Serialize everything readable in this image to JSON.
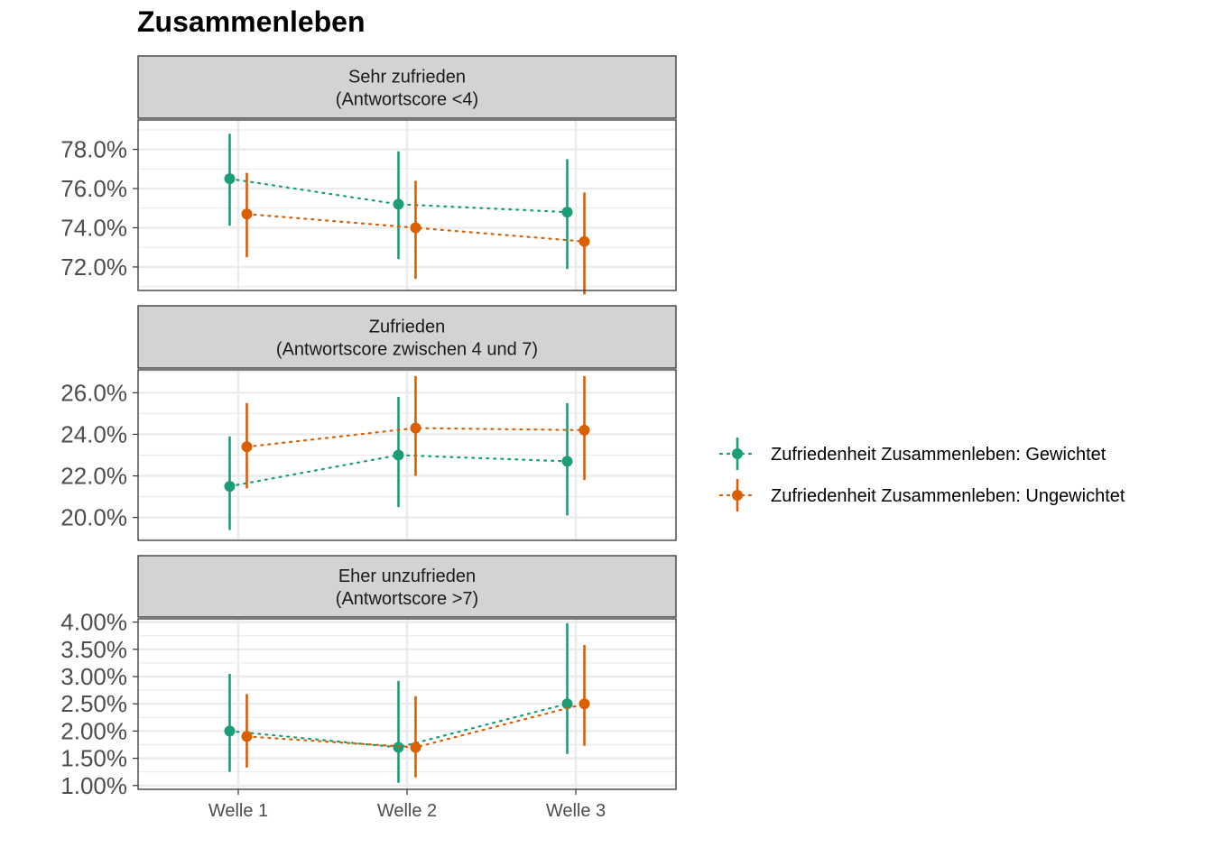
{
  "title": "Zusammenleben",
  "colors": {
    "gewichtet": "#1B9E77",
    "ungewichtet": "#D95F02",
    "strip_bg": "#D3D3D3",
    "grid": "#EBEBEB",
    "axis_text": "#4D4D4D"
  },
  "legend": {
    "position": "right",
    "items": [
      "Zufriedenheit Zusammenleben: Gewichtet",
      "Zufriedenheit Zusammenleben: Ungewichtet"
    ]
  },
  "chart_data": {
    "type": "scatter",
    "error_bars": true,
    "x_categories": [
      "Welle 1",
      "Welle 2",
      "Welle 3"
    ],
    "series_names": [
      "Zufriedenheit Zusammenleben: Gewichtet",
      "Zufriedenheit Zusammenleben: Ungewichtet"
    ],
    "panels": [
      {
        "strip": [
          "Sehr zufrieden",
          "(Antwortscore <4)"
        ],
        "ylim": [
          70.8,
          79.5
        ],
        "yticks": [
          72,
          74,
          76,
          78
        ],
        "ytick_labels": [
          "72.0%",
          "74.0%",
          "76.0%",
          "78.0%"
        ],
        "series": [
          {
            "name": "Zufriedenheit Zusammenleben: Gewichtet",
            "values": [
              76.5,
              75.2,
              74.8
            ],
            "lower": [
              74.1,
              72.4,
              71.9
            ],
            "upper": [
              78.8,
              77.9,
              77.5
            ]
          },
          {
            "name": "Zufriedenheit Zusammenleben: Ungewichtet",
            "values": [
              74.7,
              74.0,
              73.3
            ],
            "lower": [
              72.5,
              71.4,
              70.6
            ],
            "upper": [
              76.8,
              76.4,
              75.8
            ]
          }
        ]
      },
      {
        "strip": [
          "Zufrieden",
          "(Antwortscore zwischen 4 und 7)"
        ],
        "ylim": [
          18.9,
          27.1
        ],
        "yticks": [
          20,
          22,
          24,
          26
        ],
        "ytick_labels": [
          "20.0%",
          "22.0%",
          "24.0%",
          "26.0%"
        ],
        "series": [
          {
            "name": "Zufriedenheit Zusammenleben: Gewichtet",
            "values": [
              21.5,
              23.0,
              22.7
            ],
            "lower": [
              19.4,
              20.5,
              20.1
            ],
            "upper": [
              23.9,
              25.8,
              25.5
            ]
          },
          {
            "name": "Zufriedenheit Zusammenleben: Ungewichtet",
            "values": [
              23.4,
              24.3,
              24.2
            ],
            "lower": [
              21.4,
              22.0,
              21.8
            ],
            "upper": [
              25.5,
              26.8,
              26.8
            ]
          }
        ]
      },
      {
        "strip": [
          "Eher unzufrieden",
          "(Antwortscore >7)"
        ],
        "ylim": [
          0.93,
          4.06
        ],
        "yticks": [
          1.0,
          1.5,
          2.0,
          2.5,
          3.0,
          3.5,
          4.0
        ],
        "ytick_labels": [
          "1.00%",
          "1.50%",
          "2.00%",
          "2.50%",
          "3.00%",
          "3.50%",
          "4.00%"
        ],
        "series": [
          {
            "name": "Zufriedenheit Zusammenleben: Gewichtet",
            "values": [
              2.0,
              1.7,
              2.5
            ],
            "lower": [
              1.25,
              1.05,
              1.58
            ],
            "upper": [
              3.05,
              2.92,
              3.98
            ]
          },
          {
            "name": "Zufriedenheit Zusammenleben: Ungewichtet",
            "values": [
              1.9,
              1.7,
              2.5
            ],
            "lower": [
              1.33,
              1.15,
              1.73
            ],
            "upper": [
              2.68,
              2.64,
              3.58
            ]
          }
        ]
      }
    ]
  }
}
